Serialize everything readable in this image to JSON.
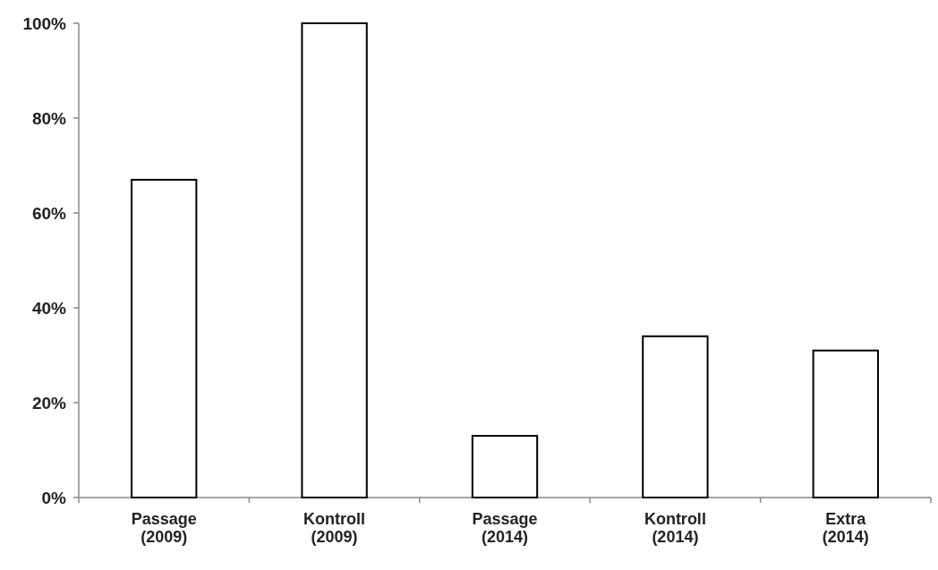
{
  "chart_data": {
    "type": "bar",
    "categories": [
      "Passage (2009)",
      "Kontroll (2009)",
      "Passage (2014)",
      "Kontroll (2014)",
      "Extra (2014)"
    ],
    "values": [
      67,
      100,
      13,
      34,
      31
    ],
    "color": "#ffffff",
    "ylim": [
      0,
      100
    ],
    "yticks": [
      {
        "value": 0,
        "label": "0%"
      },
      {
        "value": 20,
        "label": "20%"
      },
      {
        "value": 40,
        "label": "40%"
      },
      {
        "value": 60,
        "label": "60%"
      },
      {
        "value": 80,
        "label": "80%"
      },
      {
        "value": 100,
        "label": "100%"
      }
    ]
  }
}
